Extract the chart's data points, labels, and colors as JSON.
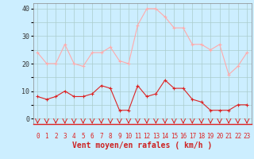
{
  "x": [
    0,
    1,
    2,
    3,
    4,
    5,
    6,
    7,
    8,
    9,
    10,
    11,
    12,
    13,
    14,
    15,
    16,
    17,
    18,
    19,
    20,
    21,
    22,
    23
  ],
  "wind_avg": [
    8,
    7,
    8,
    10,
    8,
    8,
    9,
    12,
    11,
    3,
    3,
    12,
    8,
    9,
    14,
    11,
    11,
    7,
    6,
    3,
    3,
    3,
    5,
    5
  ],
  "wind_gust": [
    24,
    20,
    20,
    27,
    20,
    19,
    24,
    24,
    26,
    21,
    20,
    34,
    40,
    40,
    37,
    33,
    33,
    27,
    27,
    25,
    27,
    16,
    19,
    24
  ],
  "bg_color": "#cceeff",
  "grid_color": "#aacccc",
  "avg_color": "#dd2222",
  "gust_color": "#ffaaaa",
  "xlabel": "Vent moyen/en rafales ( km/h )",
  "xlabel_color": "#cc2222",
  "ytick_labels": [
    "0",
    "",
    "10",
    "",
    "20",
    "",
    "30",
    "",
    "40"
  ],
  "yticks": [
    0,
    5,
    10,
    15,
    20,
    25,
    30,
    35,
    40
  ],
  "xticks": [
    0,
    1,
    2,
    3,
    4,
    5,
    6,
    7,
    8,
    9,
    10,
    11,
    12,
    13,
    14,
    15,
    16,
    17,
    18,
    19,
    20,
    21,
    22,
    23
  ],
  "ylim": [
    -2,
    42
  ],
  "xlim": [
    -0.5,
    23.5
  ]
}
